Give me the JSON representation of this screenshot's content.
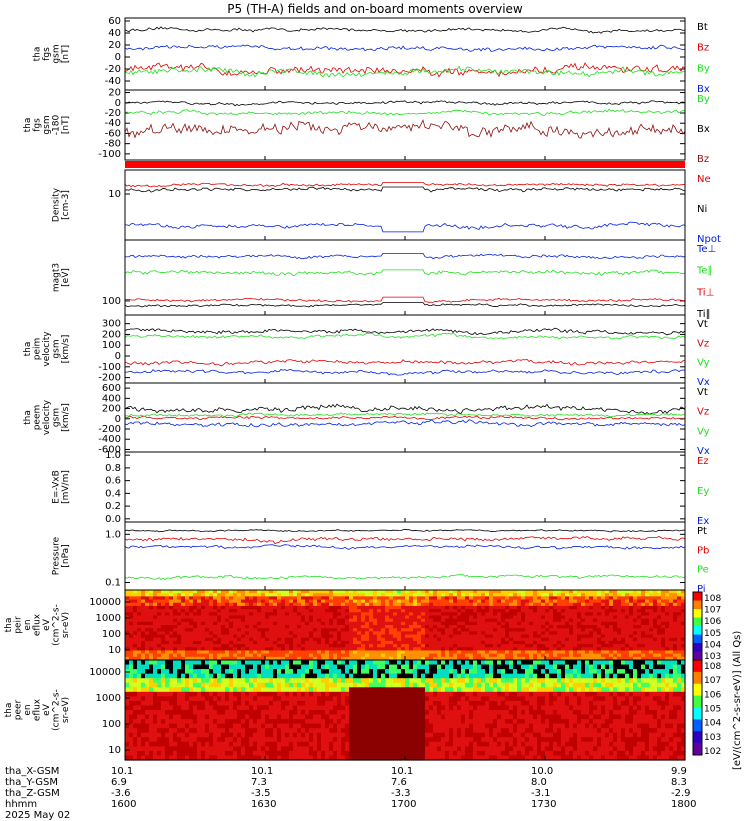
{
  "title": "P5 (TH-A) fields and on-board moments overview",
  "colors": {
    "black": "#000000",
    "red": "#e00000",
    "green": "#20e020",
    "blue": "#0020e0",
    "darkred": "#8b1010"
  },
  "chart_data": {
    "type": "line",
    "time_axis": {
      "ticks": [
        "1600",
        "1630",
        "1700",
        "1730",
        "1800"
      ],
      "date": "2025 May 02"
    },
    "panels": [
      {
        "id": "fgs-gsm",
        "ylabel": [
          "tha",
          "fgs",
          "gsm",
          "[nT]"
        ],
        "scale": "linear",
        "ylim": [
          -55,
          65
        ],
        "yticks": [
          "60",
          "40",
          "20",
          "0",
          "-20",
          "-40"
        ],
        "series": [
          {
            "name": "Bt",
            "color": "#000000",
            "level": 45,
            "amp": 6
          },
          {
            "name": "Bz",
            "color": "#e00000",
            "level": -22,
            "amp": 16
          },
          {
            "name": "By",
            "color": "#20e020",
            "level": -25,
            "amp": 12
          },
          {
            "name": "Bx",
            "color": "#0020e0",
            "level": 15,
            "amp": 8
          }
        ],
        "legend": [
          "Bt",
          "Bz",
          "By",
          "Bx"
        ]
      },
      {
        "id": "fgs-gsm-180",
        "ylabel": [
          "tha",
          "fgs",
          "gsm",
          "-180",
          "[nT]"
        ],
        "scale": "linear",
        "ylim": [
          -112,
          25
        ],
        "yticks": [
          "20",
          "0",
          "-20",
          "-40",
          "-60",
          "-80",
          "-100"
        ],
        "series": [
          {
            "name": "By",
            "color": "#20e020",
            "level": -20,
            "amp": 8
          },
          {
            "name": "Bx",
            "color": "#000000",
            "level": 0,
            "amp": 6
          },
          {
            "name": "Bz",
            "color": "#8b1010",
            "level": -55,
            "amp": 28
          }
        ],
        "legend": [
          "By",
          "Bx",
          "Bz"
        ]
      },
      {
        "id": "density",
        "ylabel": [
          "Density",
          "[cm-3]"
        ],
        "scale": "log",
        "ylim": [
          0.7,
          40
        ],
        "yticks": [
          "10"
        ],
        "series": [
          {
            "name": "Ne",
            "color": "#e00000",
            "level": 17,
            "amp": 3
          },
          {
            "name": "Ni",
            "color": "#000000",
            "level": 13,
            "amp": 3
          },
          {
            "name": "Npot",
            "color": "#0020e0",
            "level": 1.6,
            "amp": 0.4
          }
        ],
        "legend": [
          "Ne",
          "Ni",
          "Npot"
        ]
      },
      {
        "id": "temperature",
        "ylabel": [
          "magt3",
          "[eV]"
        ],
        "scale": "log",
        "ylim": [
          50,
          2000
        ],
        "yticks": [
          "100"
        ],
        "series": [
          {
            "name": "Te⊥",
            "color": "#0020e0",
            "level": 900,
            "amp": 150
          },
          {
            "name": "Te∥",
            "color": "#20e020",
            "level": 400,
            "amp": 90
          },
          {
            "name": "Ti⊥",
            "color": "#e00000",
            "level": 105,
            "amp": 15
          },
          {
            "name": "Ti∥",
            "color": "#000000",
            "level": 80,
            "amp": 10
          }
        ],
        "legend": [
          "Te⊥",
          "Te∥",
          "Ti⊥",
          "Ti∥"
        ]
      },
      {
        "id": "peim-velocity",
        "ylabel": [
          "tha",
          "peim",
          "velocity",
          "gsm",
          "[km/s]"
        ],
        "scale": "linear",
        "ylim": [
          -250,
          380
        ],
        "yticks": [
          "300",
          "200",
          "100",
          "0",
          "-100",
          "-200"
        ],
        "series": [
          {
            "name": "Vt",
            "color": "#000000",
            "level": 230,
            "amp": 40
          },
          {
            "name": "Vz",
            "color": "#e00000",
            "level": -60,
            "amp": 40
          },
          {
            "name": "Vy",
            "color": "#20e020",
            "level": 180,
            "amp": 35
          },
          {
            "name": "Vx",
            "color": "#0020e0",
            "level": -150,
            "amp": 35
          }
        ],
        "legend": [
          "Vt",
          "Vz",
          "Vy",
          "Vx"
        ]
      },
      {
        "id": "peem-velocity",
        "ylabel": [
          "tha",
          "peem",
          "velocity",
          "gsm",
          "[km/s]"
        ],
        "scale": "linear",
        "ylim": [
          -650,
          700
        ],
        "yticks": [
          "600",
          "400",
          "200",
          "0",
          "-200",
          "-400",
          "-600"
        ],
        "series": [
          {
            "name": "Vt",
            "color": "#000000",
            "level": 200,
            "amp": 120
          },
          {
            "name": "Vz",
            "color": "#e00000",
            "level": 20,
            "amp": 60
          },
          {
            "name": "Vy",
            "color": "#20e020",
            "level": 80,
            "amp": 60
          },
          {
            "name": "Vx",
            "color": "#0020e0",
            "level": -100,
            "amp": 80
          }
        ],
        "legend": [
          "Vt",
          "Vz",
          "Vy",
          "Vx"
        ]
      },
      {
        "id": "e-vxb",
        "ylabel": [
          "E=-VxB",
          "[mV/m]"
        ],
        "scale": "linear",
        "ylim": [
          -0.05,
          1.05
        ],
        "yticks": [
          "1.0",
          "0.8",
          "0.6",
          "0.4",
          "0.2",
          "0.0"
        ],
        "series": [],
        "legend": [
          "Ez",
          "Ey",
          "Ex"
        ],
        "legend_colors": [
          "#e00000",
          "#20e020",
          "#0020e0"
        ]
      },
      {
        "id": "pressure",
        "ylabel": [
          "Pressure",
          "[nPa]"
        ],
        "scale": "log",
        "ylim": [
          0.07,
          1.8
        ],
        "yticks": [
          "1.0",
          "0.1"
        ],
        "series": [
          {
            "name": "Pt",
            "color": "#000000",
            "level": 1.2,
            "amp": 0.1
          },
          {
            "name": "Pb",
            "color": "#e00000",
            "level": 0.8,
            "amp": 0.15
          },
          {
            "name": "Pe",
            "color": "#20e020",
            "level": 0.13,
            "amp": 0.02
          },
          {
            "name": "Pi",
            "color": "#0020e0",
            "level": 0.55,
            "amp": 0.08
          }
        ],
        "legend": [
          "Pt",
          "Pb",
          "Pe",
          "Pi"
        ]
      },
      {
        "id": "peir-spectrogram",
        "type": "heatmap",
        "ylabel": [
          "tha",
          "peir",
          "en",
          "eflux",
          "eV",
          "(cm^2-s-",
          "sr-eV)"
        ],
        "yticks": [
          "10000",
          "1000",
          "100",
          "10"
        ]
      },
      {
        "id": "peer-spectrogram",
        "type": "heatmap",
        "ylabel": [
          "tha",
          "peer",
          "en",
          "eflux",
          "eV",
          "(cm^2-s-",
          "sr-eV)"
        ],
        "yticks": [
          "10000",
          "1000",
          "100",
          "10"
        ]
      }
    ],
    "colorbar": {
      "label": "[eV/(cm^2-s-sr-eV)] (All Qs)",
      "top_ticks": [
        "10^8",
        "10^7",
        "10^6",
        "10^5",
        "10^4",
        "10^3"
      ],
      "bottom_ticks": [
        "10^8",
        "10^7",
        "10^6",
        "10^5",
        "10^4",
        "10^3",
        "10^2"
      ]
    }
  },
  "footer": {
    "rows": [
      {
        "label": "tha_X-GSM",
        "values": [
          "10.1",
          "10.1",
          "10.1",
          "10.0",
          "9.9"
        ]
      },
      {
        "label": "tha_Y-GSM",
        "values": [
          "6.9",
          "7.3",
          "7.6",
          "8.0",
          "8.3"
        ]
      },
      {
        "label": "tha_Z-GSM",
        "values": [
          "-3.6",
          "-3.5",
          "-3.3",
          "-3.1",
          "-2.9"
        ]
      },
      {
        "label": "hhmm",
        "values": [
          "1600",
          "1630",
          "1700",
          "1730",
          "1800"
        ]
      }
    ],
    "date": "2025 May 02"
  }
}
